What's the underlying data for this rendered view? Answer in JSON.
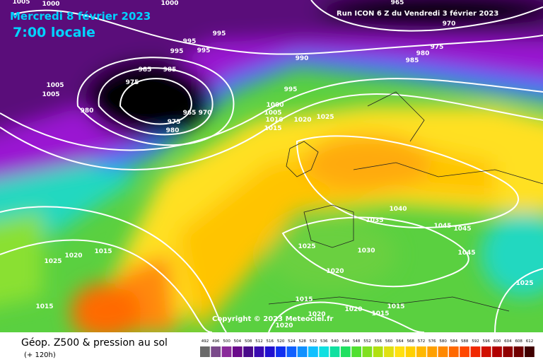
{
  "header": {
    "date": "Mercredi 8 février 2023",
    "time": "7:00 locale",
    "run": "Run ICON 6 Z du Vendredi 3 février 2023"
  },
  "copyright": "Copyright © 2023 Meteociel.fr",
  "footer": {
    "title": "Géop. Z500 & pression au sol",
    "lead": "(+ 120h)"
  },
  "legend": {
    "labels": [
      492,
      496,
      500,
      504,
      508,
      512,
      516,
      520,
      524,
      528,
      532,
      536,
      540,
      544,
      548,
      552,
      556,
      560,
      564,
      568,
      572,
      576,
      580,
      584,
      588,
      592,
      596,
      600,
      604,
      608,
      612
    ]
  },
  "isobar_labels": [
    1000,
    1005,
    1000,
    995,
    995,
    995,
    995,
    985,
    985,
    975,
    980,
    975,
    980,
    965,
    970,
    1005,
    1005,
    990,
    995,
    1000,
    1005,
    1010,
    1015,
    1020,
    1025,
    965,
    970,
    975,
    980,
    985,
    1040,
    1035,
    1045,
    1045,
    1045,
    1025,
    1030,
    1020,
    1020,
    1015,
    1025,
    1015,
    1015,
    1020,
    1020,
    1015,
    1015,
    1020,
    1025
  ]
}
